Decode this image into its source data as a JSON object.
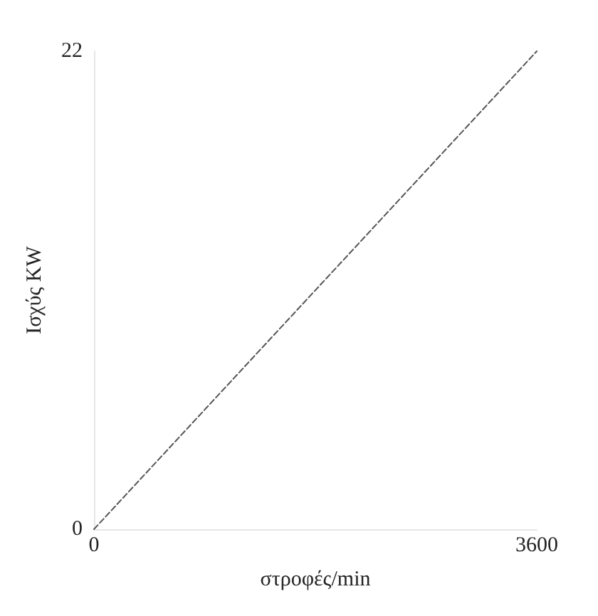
{
  "chart_data": {
    "type": "line",
    "xlabel": "στροφές/min",
    "ylabel": "Ισχύς KW",
    "x": [
      0,
      3600
    ],
    "series": [
      {
        "color": "#555555",
        "values": [
          0,
          22
        ]
      }
    ],
    "xlim": [
      0,
      3600
    ],
    "ylim": [
      0,
      22
    ],
    "xticks": [
      0,
      3600
    ],
    "yticks": [
      0,
      22
    ],
    "grid": false,
    "marker": "none",
    "line_style": "dashed"
  }
}
